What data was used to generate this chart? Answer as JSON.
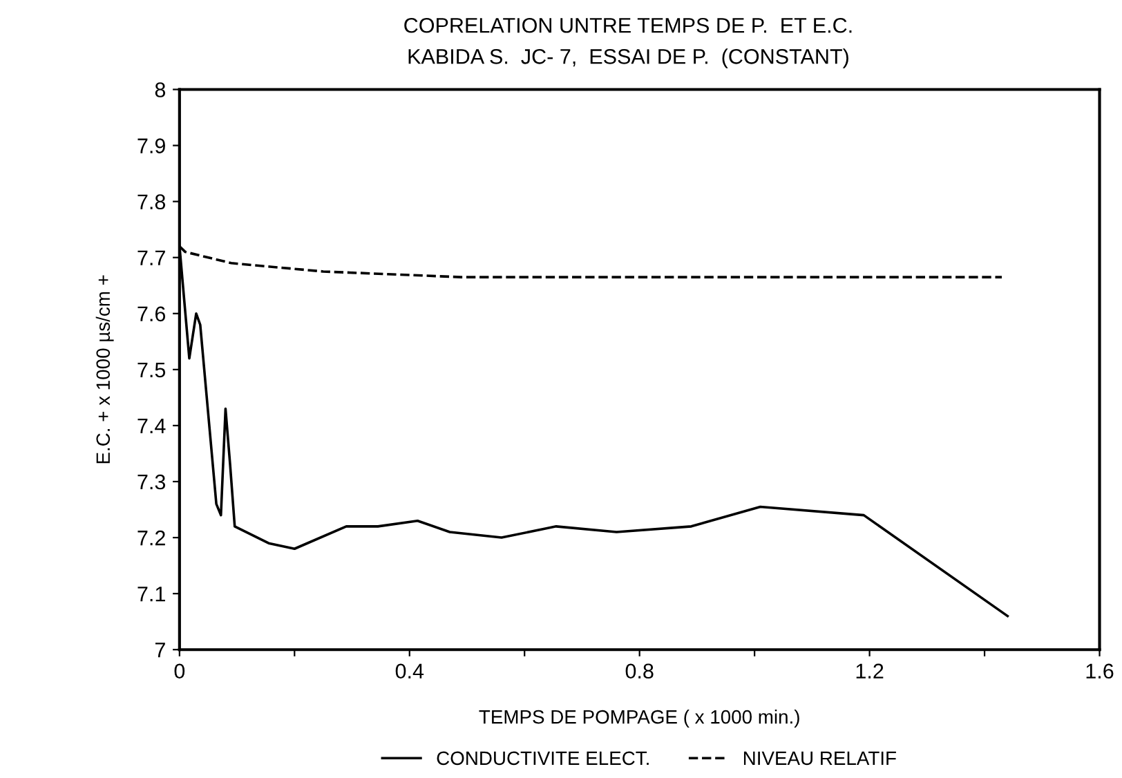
{
  "chart_data": {
    "type": "line",
    "title": "COPRELATION UNTRE TEMPS DE P.  ET E.C.",
    "subtitle": "KABIDA S.  JC- 7,  ESSAI DE P.  (CONSTANT)",
    "xlabel": "TEMPS DE POMPAGE ( x 1000 min.)",
    "ylabel": "E.C. + x 1000 µs/cm +",
    "xlim": [
      0,
      1.6
    ],
    "xticks": [
      {
        "value": 0,
        "label": "0"
      },
      {
        "value": 0.2,
        "label": null
      },
      0.4,
      {
        "value": 0.6,
        "label": null
      },
      0.8,
      {
        "value": 1.0,
        "label": null
      },
      1.2,
      {
        "value": 1.4,
        "label": null
      },
      1.6
    ],
    "ylim": [
      7,
      8
    ],
    "yticks": [
      7,
      7.1,
      7.2,
      7.3,
      7.4,
      7.5,
      7.6,
      7.7,
      7.8,
      7.9,
      8
    ],
    "grid": false,
    "legend": "bottom",
    "series": [
      {
        "name": "CONDUCTIVITE ELECT.",
        "color": "#000000",
        "line_style": "solid",
        "x": [
          0,
          0.017,
          0.029,
          0.036,
          0.064,
          0.072,
          0.08,
          0.088,
          0.096,
          0.155,
          0.2,
          0.29,
          0.345,
          0.414,
          0.47,
          0.56,
          0.655,
          0.76,
          0.89,
          1.01,
          1.19,
          1.44
        ],
        "values": [
          7.72,
          7.52,
          7.6,
          7.58,
          7.26,
          7.24,
          7.43,
          7.33,
          7.22,
          7.19,
          7.18,
          7.22,
          7.22,
          7.23,
          7.21,
          7.2,
          7.22,
          7.21,
          7.22,
          7.255,
          7.24,
          7.06
        ]
      },
      {
        "name": "NIVEAU RELATIF",
        "color": "#000000",
        "line_style": "dashed",
        "x": [
          0,
          0.01,
          0.09,
          0.25,
          0.49,
          1.43
        ],
        "values": [
          7.72,
          7.71,
          7.69,
          7.675,
          7.665,
          7.665
        ]
      }
    ]
  }
}
